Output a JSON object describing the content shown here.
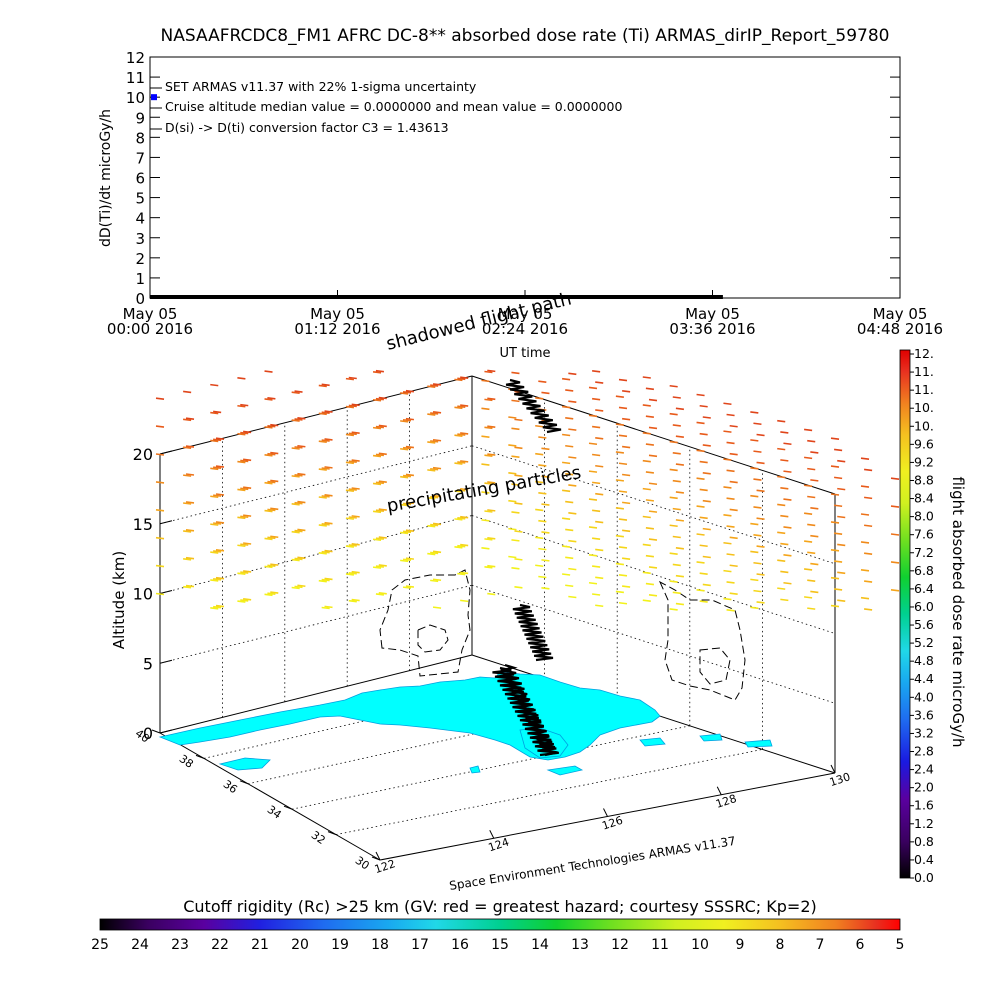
{
  "title": "NASAAFRCDC8_FM1 AFRC DC-8** absorbed dose rate (Ti) ARMAS_dirIP_Report_59780",
  "chart_data": [
    {
      "type": "line",
      "title": "NASAAFRCDC8_FM1 AFRC DC-8** absorbed dose rate (Ti) ARMAS_dirIP_Report_59780",
      "ylabel": "dD(Ti)/dt microGy/h",
      "xlabel": "UT time",
      "ylim": [
        0,
        12
      ],
      "yticks": [
        "0",
        "1",
        "2",
        "3",
        "4",
        "5",
        "6",
        "7",
        "8",
        "9",
        "10",
        "11",
        "12"
      ],
      "xticks": [
        {
          "top": "May 05",
          "bottom": "00:00 2016"
        },
        {
          "top": "May 05",
          "bottom": "01:12 2016"
        },
        {
          "top": "May 05",
          "bottom": "02:24 2016"
        },
        {
          "top": "May 05",
          "bottom": "03:36 2016"
        },
        {
          "top": "May 05",
          "bottom": "04:48 2016"
        }
      ],
      "annotations": [
        "SET ARMAS v11.37 with 22% 1-sigma uncertainty",
        "Cruise altitude median value = 0.0000000 and mean value = 0.0000000",
        "D(si) -> D(ti) conversion factor C3 = 1.43613"
      ],
      "series": [
        {
          "values_from_time": "00:00",
          "values_to_time": "03:40",
          "y": 0,
          "color": "#000000"
        }
      ],
      "marker_point": {
        "x": "00:00",
        "y": 10,
        "color": "#0000ff"
      },
      "grid": false
    },
    {
      "type": "scatter",
      "view": "3d",
      "zlabel": "Altitude (km)",
      "zticks": [
        "0",
        "5",
        "10",
        "15",
        "20"
      ],
      "latitude_ticks": [
        "40",
        "38",
        "36",
        "34",
        "32",
        "30"
      ],
      "longitude_ticks": [
        "122",
        "124",
        "126",
        "128",
        "130"
      ],
      "labels": {
        "shadowed": "shadowed flight path",
        "precip": "precipitating particles",
        "credit": "Space Environment Technologies ARMAS v11.37"
      },
      "particle_field": {
        "levels_km": [
          8,
          10,
          12,
          14,
          16,
          18,
          20,
          22,
          24
        ],
        "level_colors": [
          "#f2f21a",
          "#f5ea1a",
          "#f5d71a",
          "#f5c01a",
          "#f5a51a",
          "#f08a1a",
          "#ec721a",
          "#e85a1a",
          "#e0451a"
        ]
      },
      "land_color": "#00ffff",
      "colorbar": {
        "label": "flight absorbed dose rate microGy/h",
        "ticks": [
          "0.0",
          "0.4",
          "0.8",
          "1.2",
          "1.6",
          "2.0",
          "2.4",
          "2.8",
          "3.2",
          "3.6",
          "4.0",
          "4.4",
          "4.8",
          "5.2",
          "5.6",
          "6.0",
          "6.4",
          "6.8",
          "7.2",
          "7.6",
          "8.0",
          "8.4",
          "8.8",
          "9.2",
          "9.6",
          "10.",
          "10.",
          "11.",
          "11.",
          "12."
        ]
      },
      "grid": true
    },
    {
      "type": "heatmap",
      "title": "Cutoff rigidity (Rc) >25 km (GV: red = greatest hazard; courtesy SSSRC; Kp=2)",
      "ticks": [
        "25",
        "24",
        "23",
        "22",
        "21",
        "20",
        "19",
        "18",
        "17",
        "16",
        "15",
        "14",
        "13",
        "12",
        "11",
        "10",
        "9",
        "8",
        "7",
        "6",
        "5"
      ],
      "range": [
        25,
        5
      ]
    }
  ]
}
